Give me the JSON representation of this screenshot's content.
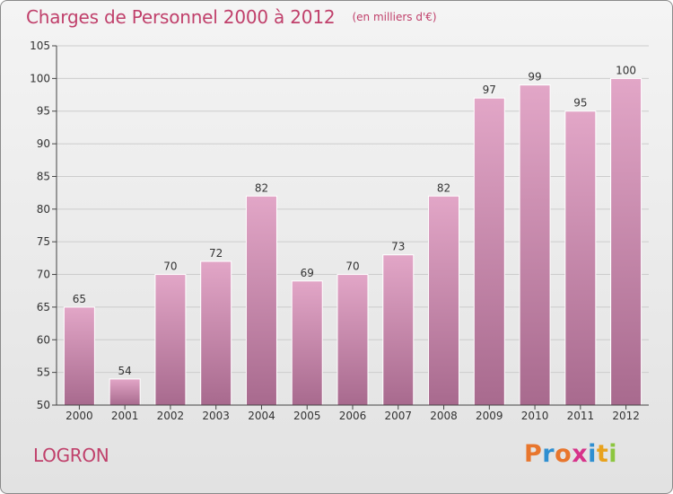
{
  "chart_data": {
    "type": "bar",
    "title": "Charges de Personnel 2000 à 2012",
    "subtitle": "(en milliers d'€)",
    "categories": [
      "2000",
      "2001",
      "2002",
      "2003",
      "2004",
      "2005",
      "2006",
      "2007",
      "2008",
      "2009",
      "2010",
      "2011",
      "2012"
    ],
    "values": [
      65,
      54,
      70,
      72,
      82,
      69,
      70,
      73,
      82,
      97,
      99,
      95,
      100
    ],
    "ylim": [
      50,
      105
    ],
    "yticks": [
      50,
      55,
      60,
      65,
      70,
      75,
      80,
      85,
      90,
      95,
      100,
      105
    ],
    "grid": true,
    "bar_color": "#d48fb0"
  },
  "location_label": "LOGRON",
  "logo": {
    "text": "Proxiti",
    "letter_colors": [
      "#e8762d",
      "#2f8fd1",
      "#e8762d",
      "#d7338a",
      "#2f8fd1",
      "#e8a21d",
      "#8cc63f"
    ]
  },
  "colors": {
    "title": "#c0406b",
    "axis": "#444444",
    "grid": "#cccccc"
  }
}
